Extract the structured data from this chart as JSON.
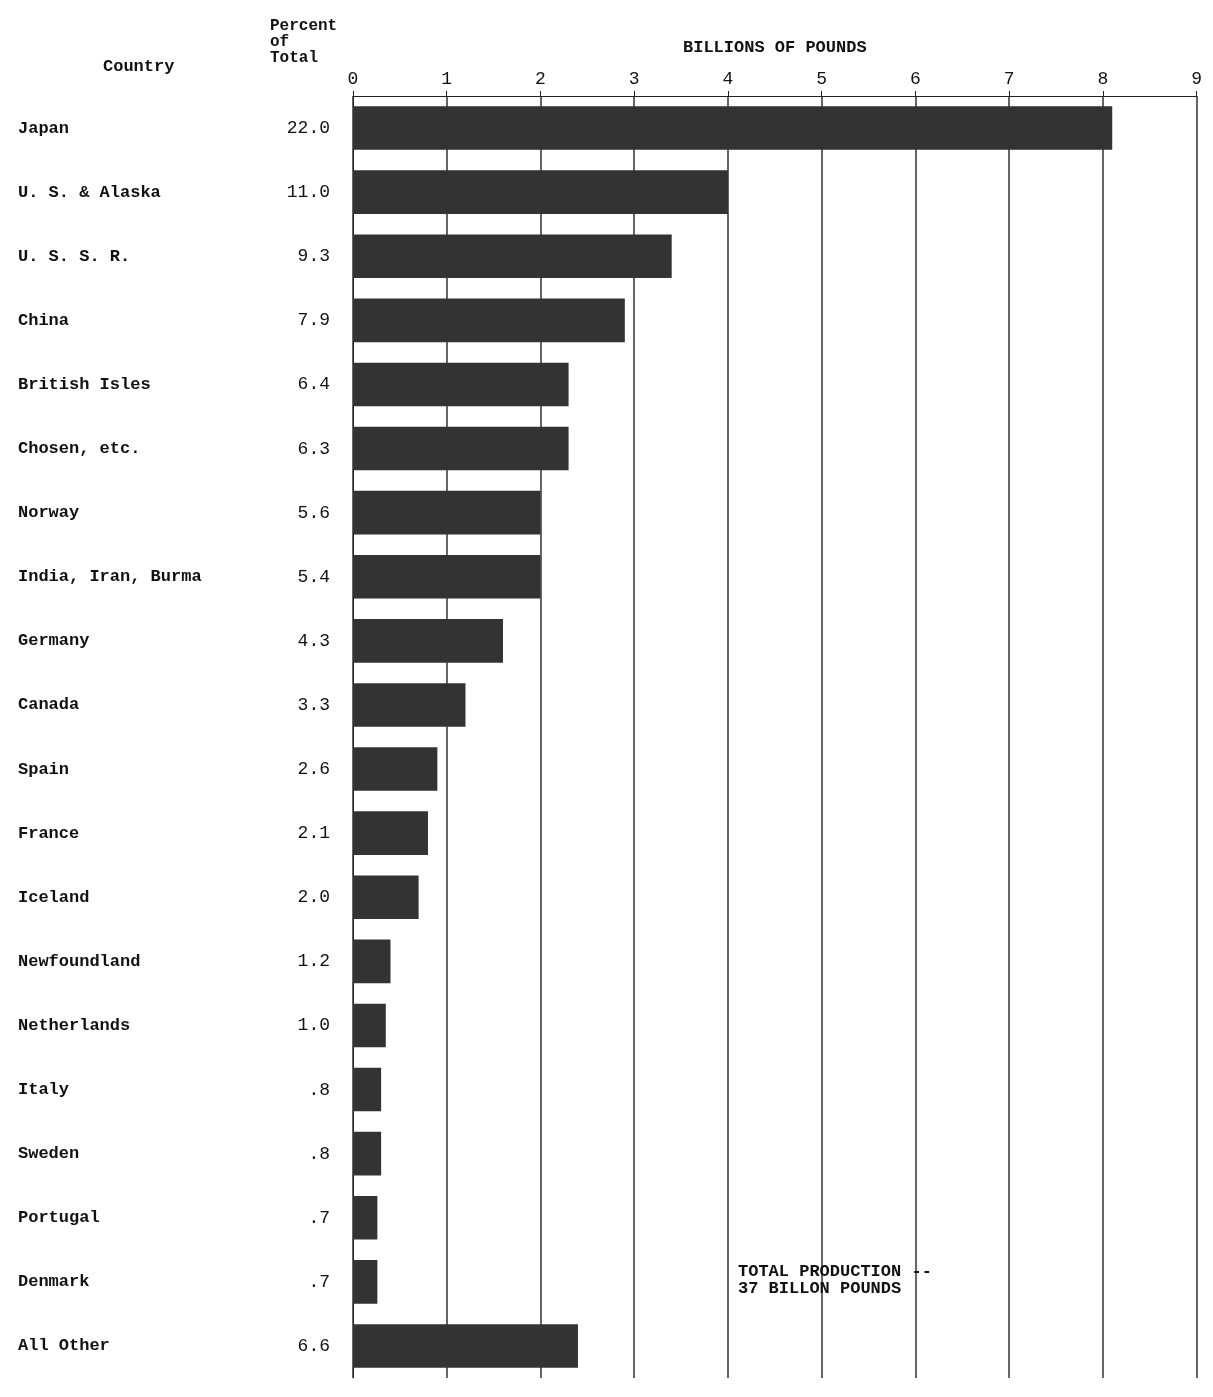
{
  "chart_data": {
    "type": "bar",
    "orientation": "horizontal",
    "xlabel": "BILLIONS OF POUNDS",
    "ylabel": "Country",
    "categories": [
      "Japan",
      "U. S. & Alaska",
      "U. S. S. R.",
      "China",
      "British Isles",
      "Chosen, etc.",
      "Norway",
      "India, Iran, Burma",
      "Germany",
      "Canada",
      "Spain",
      "France",
      "Iceland",
      "Newfoundland",
      "Netherlands",
      "Italy",
      "Sweden",
      "Portugal",
      "Denmark",
      "All Other"
    ],
    "values": [
      8.1,
      4.0,
      3.4,
      2.9,
      2.3,
      2.3,
      2.0,
      2.0,
      1.6,
      1.2,
      0.9,
      0.8,
      0.7,
      0.4,
      0.35,
      0.3,
      0.3,
      0.26,
      0.26,
      2.4
    ],
    "color": "#333333",
    "xlim": [
      0,
      9
    ],
    "xticks": [
      0,
      1,
      2,
      3,
      4,
      5,
      6,
      7,
      8,
      9
    ],
    "grid": "x",
    "annotations": [
      "Percent of Total",
      "TOTAL PRODUCTION --\n37 BILLON POUNDS",
      "22.0",
      "11.0",
      "9.3",
      "7.9",
      "6.4",
      "6.3",
      "5.6",
      "5.4",
      "4.3",
      "3.3",
      "2.6",
      "2.1",
      "2.0",
      "1.2",
      "1.0",
      ".8",
      ".8",
      ".7",
      ".7",
      "6.6"
    ]
  }
}
